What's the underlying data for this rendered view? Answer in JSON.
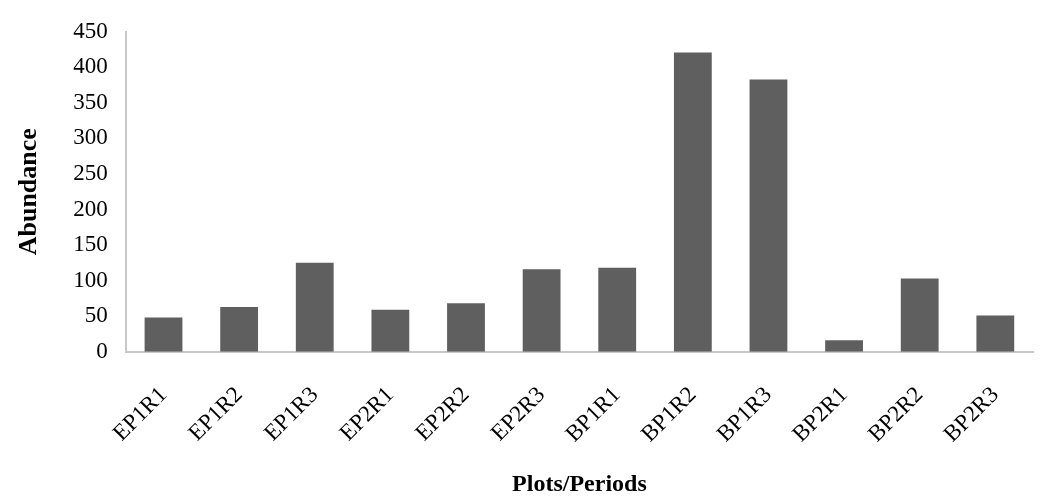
{
  "chart_data": {
    "type": "bar",
    "xlabel": "Plots/Periods",
    "ylabel": "Abundance",
    "categories": [
      "EP1R1",
      "EP1R2",
      "EP1R3",
      "EP2R1",
      "EP2R2",
      "EP2R3",
      "BP1R1",
      "BP1R2",
      "BP1R3",
      "BP2R1",
      "BP2R2",
      "BP2R3"
    ],
    "values": [
      48,
      63,
      125,
      59,
      68,
      116,
      118,
      421,
      383,
      16,
      103,
      51
    ],
    "color": "#5f5f5f",
    "ylim": [
      0,
      450
    ],
    "yticks": [
      0,
      50,
      100,
      150,
      200,
      250,
      300,
      350,
      400,
      450
    ],
    "grid": false,
    "legend": false
  }
}
